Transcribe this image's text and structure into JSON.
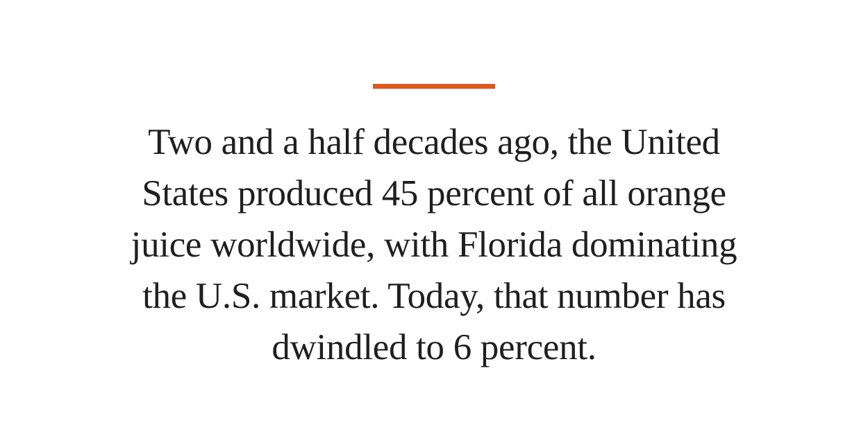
{
  "quote": {
    "lines": [
      "Two and a half decades ago, the United",
      "States produced 45 percent of all orange",
      "juice worldwide, with Florida dominating",
      "the U.S. market. Today, that number has",
      "dwindled to 6 percent."
    ]
  }
}
